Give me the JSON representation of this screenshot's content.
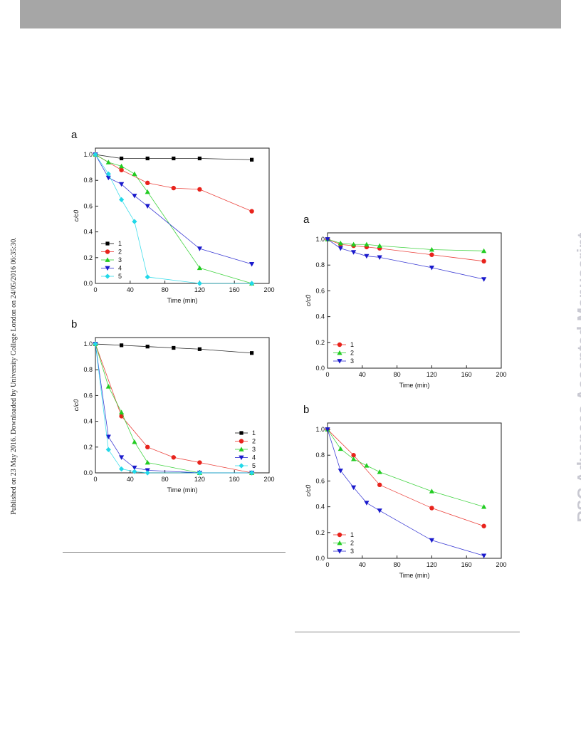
{
  "side_note": "Published on 23 May 2016. Downloaded by University College London on 24/05/2016 06:35:30.",
  "watermark": "RSC Advances Accepted Manuscript",
  "colors": {
    "header_bar": "#a6a6a6",
    "watermark": "#c9c9d2"
  },
  "chart_data": [
    {
      "panel_label": "a",
      "type": "line",
      "xlabel": "Time (min)",
      "ylabel": "c/c0",
      "xlim": [
        0,
        200
      ],
      "ylim": [
        0,
        1.05
      ],
      "xticks": [
        0,
        40,
        80,
        120,
        160,
        200
      ],
      "yticks": [
        0.0,
        0.2,
        0.4,
        0.6,
        0.8,
        1.0
      ],
      "legend_position": "bottom-left",
      "grid": false,
      "series": [
        {
          "name": "1",
          "color": "#000000",
          "marker": "square",
          "x": [
            0,
            30,
            60,
            90,
            120,
            180
          ],
          "y": [
            1.0,
            0.97,
            0.97,
            0.97,
            0.97,
            0.96
          ]
        },
        {
          "name": "2",
          "color": "#e8231c",
          "marker": "circle",
          "x": [
            0,
            30,
            60,
            90,
            120,
            180
          ],
          "y": [
            1.0,
            0.88,
            0.78,
            0.74,
            0.73,
            0.56
          ]
        },
        {
          "name": "3",
          "color": "#22cc22",
          "marker": "triangle-up",
          "x": [
            0,
            15,
            30,
            45,
            60,
            120,
            180
          ],
          "y": [
            1.0,
            0.94,
            0.91,
            0.85,
            0.71,
            0.12,
            0.0
          ]
        },
        {
          "name": "4",
          "color": "#1a1acc",
          "marker": "triangle-down",
          "x": [
            0,
            15,
            30,
            45,
            60,
            120,
            180
          ],
          "y": [
            1.0,
            0.82,
            0.77,
            0.68,
            0.6,
            0.27,
            0.15
          ]
        },
        {
          "name": "5",
          "color": "#22d8e8",
          "marker": "diamond",
          "x": [
            0,
            15,
            30,
            45,
            60,
            120,
            180
          ],
          "y": [
            1.0,
            0.85,
            0.65,
            0.48,
            0.05,
            0.0,
            0.0
          ]
        }
      ]
    },
    {
      "panel_label": "b",
      "type": "line",
      "xlabel": "Time (min)",
      "ylabel": "c/c0",
      "xlim": [
        0,
        200
      ],
      "ylim": [
        0,
        1.05
      ],
      "xticks": [
        0,
        40,
        80,
        120,
        160,
        200
      ],
      "yticks": [
        0.0,
        0.2,
        0.4,
        0.6,
        0.8,
        1.0
      ],
      "legend_position": "bottom-right",
      "grid": false,
      "series": [
        {
          "name": "1",
          "color": "#000000",
          "marker": "square",
          "x": [
            0,
            30,
            60,
            90,
            120,
            180
          ],
          "y": [
            1.0,
            0.99,
            0.98,
            0.97,
            0.96,
            0.93
          ]
        },
        {
          "name": "2",
          "color": "#e8231c",
          "marker": "circle",
          "x": [
            0,
            30,
            60,
            90,
            120,
            180
          ],
          "y": [
            1.0,
            0.44,
            0.2,
            0.12,
            0.08,
            0.0
          ]
        },
        {
          "name": "3",
          "color": "#22cc22",
          "marker": "triangle-up",
          "x": [
            0,
            15,
            30,
            45,
            60,
            120,
            180
          ],
          "y": [
            1.0,
            0.67,
            0.47,
            0.24,
            0.08,
            0.0,
            0.0
          ]
        },
        {
          "name": "4",
          "color": "#1a1acc",
          "marker": "triangle-down",
          "x": [
            0,
            15,
            30,
            45,
            60,
            120,
            180
          ],
          "y": [
            1.0,
            0.28,
            0.12,
            0.04,
            0.02,
            0.0,
            0.0
          ]
        },
        {
          "name": "5",
          "color": "#22d8e8",
          "marker": "diamond",
          "x": [
            0,
            15,
            30,
            45,
            60,
            120,
            180
          ],
          "y": [
            1.0,
            0.18,
            0.03,
            0.01,
            0.0,
            0.0,
            0.0
          ]
        }
      ]
    },
    {
      "panel_label": "a",
      "type": "line",
      "xlabel": "Time (min)",
      "ylabel": "c/c0",
      "xlim": [
        0,
        200
      ],
      "ylim": [
        0,
        1.05
      ],
      "xticks": [
        0,
        40,
        80,
        120,
        160,
        200
      ],
      "yticks": [
        0.0,
        0.2,
        0.4,
        0.6,
        0.8,
        1.0
      ],
      "legend_position": "bottom-left",
      "grid": false,
      "series": [
        {
          "name": "1",
          "color": "#e8231c",
          "marker": "circle",
          "x": [
            0,
            15,
            30,
            45,
            60,
            120,
            180
          ],
          "y": [
            1.0,
            0.96,
            0.95,
            0.94,
            0.93,
            0.88,
            0.83
          ]
        },
        {
          "name": "2",
          "color": "#22cc22",
          "marker": "triangle-up",
          "x": [
            0,
            15,
            30,
            45,
            60,
            120,
            180
          ],
          "y": [
            1.0,
            0.97,
            0.96,
            0.96,
            0.95,
            0.92,
            0.91
          ]
        },
        {
          "name": "3",
          "color": "#1a1acc",
          "marker": "triangle-down",
          "x": [
            0,
            15,
            30,
            45,
            60,
            120,
            180
          ],
          "y": [
            1.0,
            0.93,
            0.9,
            0.87,
            0.86,
            0.78,
            0.69
          ]
        }
      ]
    },
    {
      "panel_label": "b",
      "type": "line",
      "xlabel": "Time (min)",
      "ylabel": "c/c0",
      "xlim": [
        0,
        200
      ],
      "ylim": [
        0,
        1.05
      ],
      "xticks": [
        0,
        40,
        80,
        120,
        160,
        200
      ],
      "yticks": [
        0.0,
        0.2,
        0.4,
        0.6,
        0.8,
        1.0
      ],
      "legend_position": "bottom-left",
      "grid": false,
      "series": [
        {
          "name": "1",
          "color": "#e8231c",
          "marker": "circle",
          "x": [
            0,
            30,
            60,
            120,
            180
          ],
          "y": [
            1.0,
            0.8,
            0.57,
            0.39,
            0.25
          ]
        },
        {
          "name": "2",
          "color": "#22cc22",
          "marker": "triangle-up",
          "x": [
            0,
            15,
            30,
            45,
            60,
            120,
            180
          ],
          "y": [
            1.0,
            0.85,
            0.77,
            0.72,
            0.67,
            0.52,
            0.4
          ]
        },
        {
          "name": "3",
          "color": "#1a1acc",
          "marker": "triangle-down",
          "x": [
            0,
            15,
            30,
            45,
            60,
            120,
            180
          ],
          "y": [
            1.0,
            0.68,
            0.55,
            0.43,
            0.37,
            0.14,
            0.02
          ]
        }
      ]
    }
  ]
}
